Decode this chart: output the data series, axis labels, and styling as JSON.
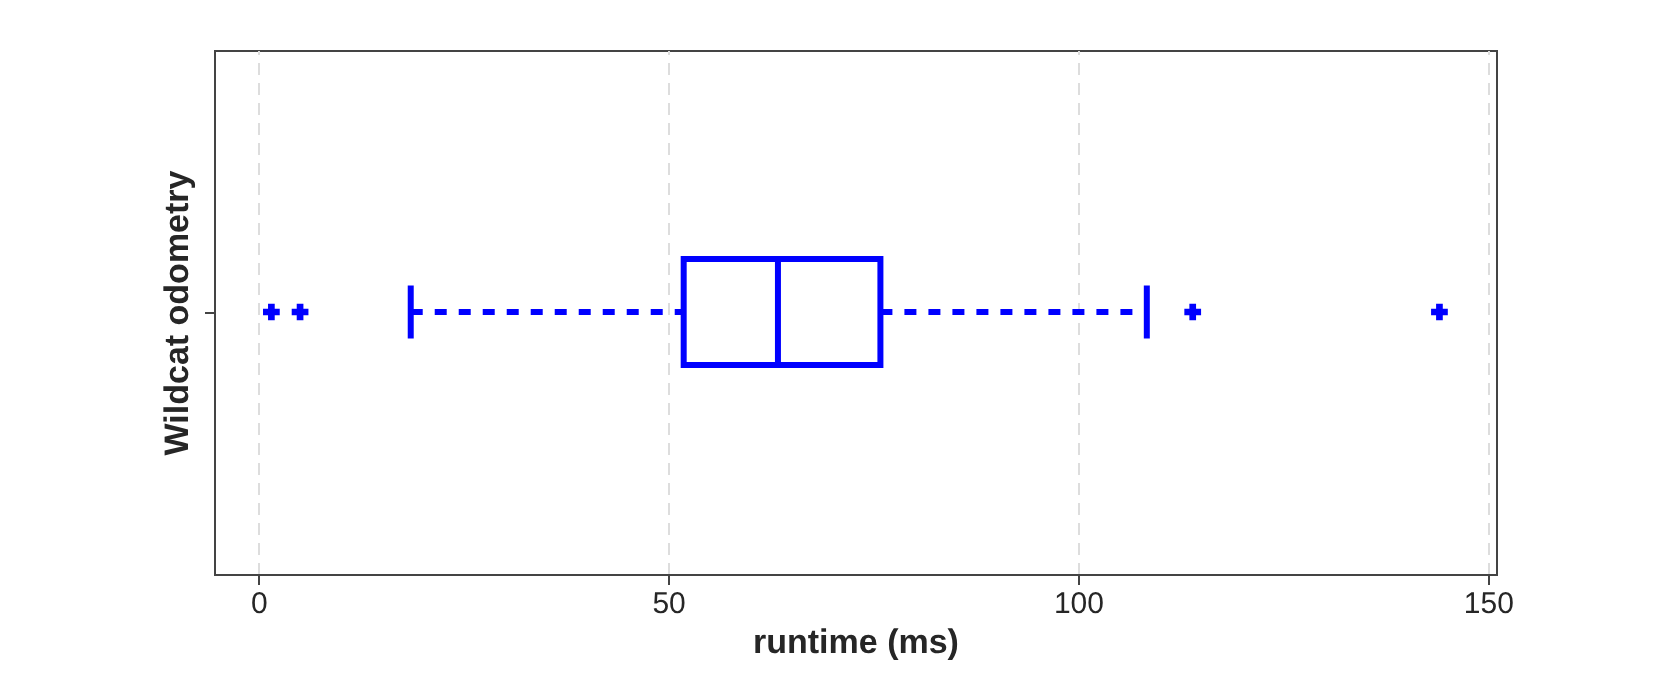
{
  "chart_data": {
    "type": "box",
    "orientation": "horizontal",
    "xlabel": "runtime (ms)",
    "ylabel": "Wildcat odometry",
    "categories": [
      null
    ],
    "series": [
      {
        "color": "#0000ff",
        "boxes": [
          {
            "low": 18.6,
            "q1": 51.9,
            "median": 63.4,
            "q3": 75.9,
            "high": 108.4,
            "outliers": [
              1.6,
              5.1,
              114.0,
              144.1
            ]
          }
        ]
      }
    ],
    "xlim": [
      -5.4,
      151
    ],
    "xticks": [
      0,
      50,
      100,
      150
    ],
    "grid": "x",
    "tick_labels": "x",
    "marker": "cross",
    "line_style": "dashed"
  }
}
